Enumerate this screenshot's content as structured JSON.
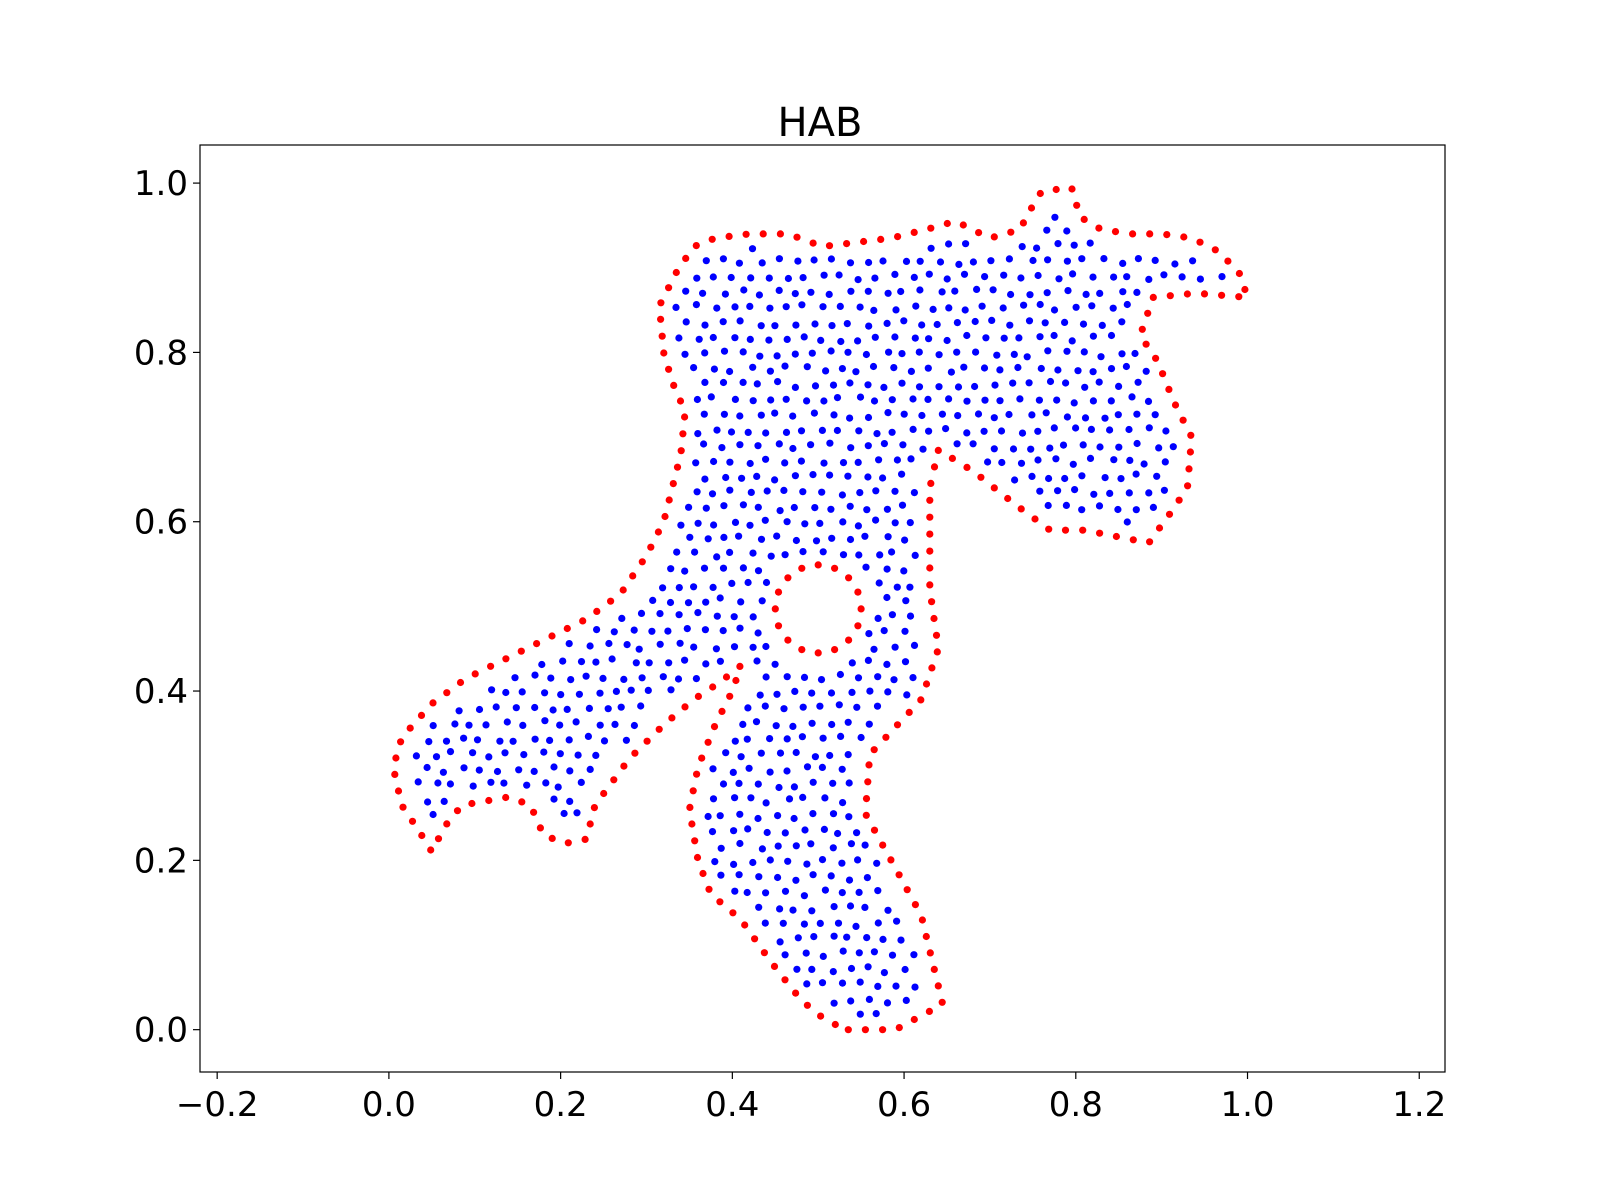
{
  "chart_data": {
    "type": "scatter",
    "title": "HAB",
    "xlabel": "",
    "ylabel": "",
    "xlim": [
      -0.22,
      1.23
    ],
    "ylim": [
      -0.05,
      1.045
    ],
    "xticks": [
      -0.2,
      0.0,
      0.2,
      0.4,
      0.6,
      0.8,
      1.0,
      1.2
    ],
    "xtick_labels": [
      "−0.2",
      "0.0",
      "0.2",
      "0.4",
      "0.6",
      "0.8",
      "1.0",
      "1.2"
    ],
    "yticks": [
      0.0,
      0.2,
      0.4,
      0.6,
      0.8,
      1.0
    ],
    "ytick_labels": [
      "0.0",
      "0.2",
      "0.4",
      "0.6",
      "0.8",
      "1.0"
    ],
    "grid": false,
    "legend": "none",
    "series": [
      {
        "color": "#ff0000",
        "role": "boundary",
        "outer_boundary": [
          [
            0.535,
            0.0
          ],
          [
            0.59,
            0.0
          ],
          [
            0.645,
            0.03
          ],
          [
            0.62,
            0.135
          ],
          [
            0.585,
            0.2
          ],
          [
            0.555,
            0.255
          ],
          [
            0.56,
            0.325
          ],
          [
            0.62,
            0.39
          ],
          [
            0.64,
            0.45
          ],
          [
            0.63,
            0.52
          ],
          [
            0.63,
            0.64
          ],
          [
            0.64,
            0.685
          ],
          [
            0.68,
            0.66
          ],
          [
            0.73,
            0.62
          ],
          [
            0.77,
            0.59
          ],
          [
            0.81,
            0.59
          ],
          [
            0.885,
            0.575
          ],
          [
            0.91,
            0.61
          ],
          [
            0.93,
            0.64
          ],
          [
            0.935,
            0.7
          ],
          [
            0.915,
            0.74
          ],
          [
            0.895,
            0.79
          ],
          [
            0.875,
            0.82
          ],
          [
            0.89,
            0.865
          ],
          [
            0.94,
            0.87
          ],
          [
            1.0,
            0.865
          ],
          [
            0.99,
            0.895
          ],
          [
            0.965,
            0.92
          ],
          [
            0.935,
            0.935
          ],
          [
            0.9,
            0.94
          ],
          [
            0.865,
            0.94
          ],
          [
            0.83,
            0.945
          ],
          [
            0.805,
            0.96
          ],
          [
            0.795,
            0.995
          ],
          [
            0.76,
            0.99
          ],
          [
            0.745,
            0.965
          ],
          [
            0.735,
            0.945
          ],
          [
            0.7,
            0.935
          ],
          [
            0.66,
            0.955
          ],
          [
            0.625,
            0.945
          ],
          [
            0.585,
            0.935
          ],
          [
            0.545,
            0.93
          ],
          [
            0.505,
            0.925
          ],
          [
            0.465,
            0.94
          ],
          [
            0.42,
            0.94
          ],
          [
            0.38,
            0.935
          ],
          [
            0.355,
            0.925
          ],
          [
            0.335,
            0.895
          ],
          [
            0.315,
            0.855
          ],
          [
            0.32,
            0.8
          ],
          [
            0.33,
            0.765
          ],
          [
            0.345,
            0.73
          ],
          [
            0.34,
            0.68
          ],
          [
            0.33,
            0.64
          ],
          [
            0.32,
            0.6
          ],
          [
            0.3,
            0.56
          ],
          [
            0.27,
            0.515
          ],
          [
            0.23,
            0.485
          ],
          [
            0.19,
            0.465
          ],
          [
            0.14,
            0.44
          ],
          [
            0.09,
            0.415
          ],
          [
            0.05,
            0.385
          ],
          [
            0.015,
            0.345
          ],
          [
            0.005,
            0.31
          ],
          [
            0.015,
            0.265
          ],
          [
            0.035,
            0.235
          ],
          [
            0.05,
            0.21
          ],
          [
            0.065,
            0.24
          ],
          [
            0.085,
            0.265
          ],
          [
            0.14,
            0.275
          ],
          [
            0.165,
            0.265
          ],
          [
            0.18,
            0.23
          ],
          [
            0.205,
            0.22
          ],
          [
            0.23,
            0.225
          ],
          [
            0.24,
            0.265
          ],
          [
            0.28,
            0.32
          ],
          [
            0.32,
            0.36
          ],
          [
            0.355,
            0.39
          ],
          [
            0.385,
            0.41
          ],
          [
            0.41,
            0.43
          ],
          [
            0.4,
            0.4
          ],
          [
            0.38,
            0.36
          ],
          [
            0.36,
            0.31
          ],
          [
            0.35,
            0.26
          ],
          [
            0.36,
            0.2
          ],
          [
            0.375,
            0.16
          ],
          [
            0.41,
            0.13
          ],
          [
            0.445,
            0.08
          ],
          [
            0.48,
            0.035
          ],
          [
            0.51,
            0.01
          ]
        ],
        "hole_center": [
          0.5,
          0.497
        ],
        "hole_radius": [
          0.05,
          0.052
        ],
        "spacing": 0.02
      },
      {
        "color": "#0000ff",
        "role": "interior",
        "region": "inside outer_boundary, outside hole",
        "spacing": 0.021
      }
    ]
  }
}
